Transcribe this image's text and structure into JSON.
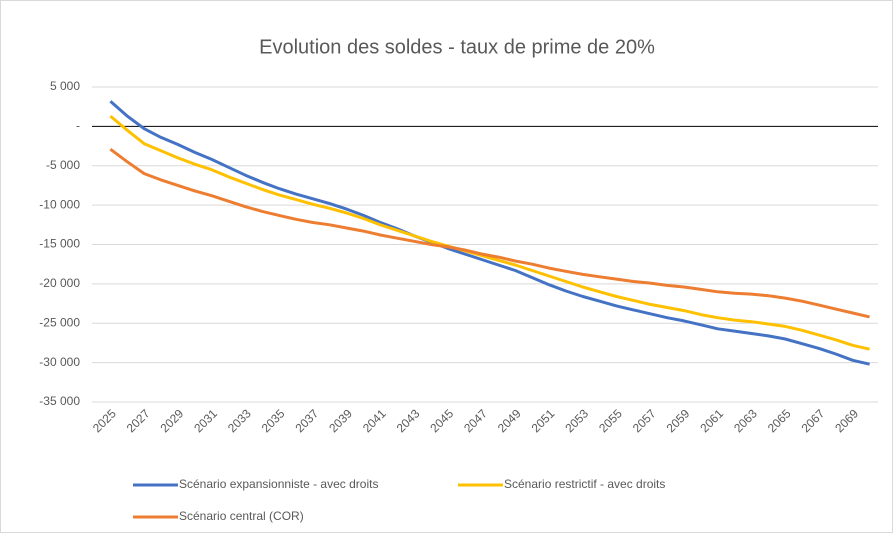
{
  "chart_data": {
    "type": "line",
    "title": "Evolution des soldes - taux de prime de 20%",
    "categories": [
      "2025",
      null,
      "2027",
      null,
      "2029",
      null,
      "2031",
      null,
      "2033",
      null,
      "2035",
      null,
      "2037",
      null,
      "2039",
      null,
      "2041",
      null,
      "2043",
      null,
      "2045",
      null,
      "2047",
      null,
      "2049",
      null,
      "2051",
      null,
      "2053",
      null,
      "2055",
      null,
      "2057",
      null,
      "2059",
      null,
      "2061",
      null,
      "2063",
      null,
      "2065",
      null,
      "2067",
      null,
      "2069",
      null
    ],
    "series": [
      {
        "name": "Scénario expansionniste - avec droits",
        "color": "#4472c4",
        "values": [
          3200,
          1300,
          -300,
          -1400,
          -2300,
          -3300,
          -4200,
          -5200,
          -6200,
          -7100,
          -7900,
          -8600,
          -9200,
          -9800,
          -10500,
          -11300,
          -12200,
          -13000,
          -13900,
          -14700,
          -15500,
          -16200,
          -16900,
          -17600,
          -18300,
          -19200,
          -20100,
          -20900,
          -21600,
          -22200,
          -22800,
          -23300,
          -23800,
          -24300,
          -24700,
          -25200,
          -25700,
          -26000,
          -26300,
          -26600,
          -27000,
          -27600,
          -28200,
          -28900,
          -29700,
          -30200
        ]
      },
      {
        "name": "Scénario restrictif - avec droits",
        "color": "#ffc000",
        "values": [
          1300,
          -500,
          -2200,
          -3100,
          -4000,
          -4800,
          -5500,
          -6400,
          -7200,
          -8000,
          -8700,
          -9300,
          -9900,
          -10400,
          -11000,
          -11700,
          -12500,
          -13200,
          -13900,
          -14600,
          -15200,
          -15800,
          -16400,
          -17000,
          -17600,
          -18300,
          -19000,
          -19700,
          -20400,
          -21000,
          -21600,
          -22100,
          -22600,
          -23000,
          -23400,
          -23900,
          -24300,
          -24600,
          -24800,
          -25100,
          -25400,
          -25900,
          -26500,
          -27100,
          -27800,
          -28300
        ]
      },
      {
        "name": "Scénario central (COR)",
        "color": "#ed7d31",
        "values": [
          -2900,
          -4500,
          -6000,
          -6800,
          -7500,
          -8200,
          -8800,
          -9500,
          -10200,
          -10800,
          -11300,
          -11800,
          -12200,
          -12500,
          -12900,
          -13300,
          -13800,
          -14200,
          -14600,
          -15000,
          -15300,
          -15700,
          -16200,
          -16600,
          -17100,
          -17500,
          -18000,
          -18400,
          -18800,
          -19100,
          -19400,
          -19700,
          -19900,
          -20200,
          -20400,
          -20700,
          -21000,
          -21200,
          -21300,
          -21500,
          -21800,
          -22200,
          -22700,
          -23200,
          -23700,
          -24200
        ]
      }
    ],
    "ylim": [
      -35000,
      5000
    ],
    "yticks": [
      {
        "value": 5000,
        "label": "5 000"
      },
      {
        "value": 0,
        "label": "-"
      },
      {
        "value": -5000,
        "label": "-5 000"
      },
      {
        "value": -10000,
        "label": "-10 000"
      },
      {
        "value": -15000,
        "label": "-15 000"
      },
      {
        "value": -20000,
        "label": "-20 000"
      },
      {
        "value": -25000,
        "label": "-25 000"
      },
      {
        "value": -30000,
        "label": "-30 000"
      },
      {
        "value": -35000,
        "label": "-35 000"
      }
    ],
    "grid": true
  }
}
